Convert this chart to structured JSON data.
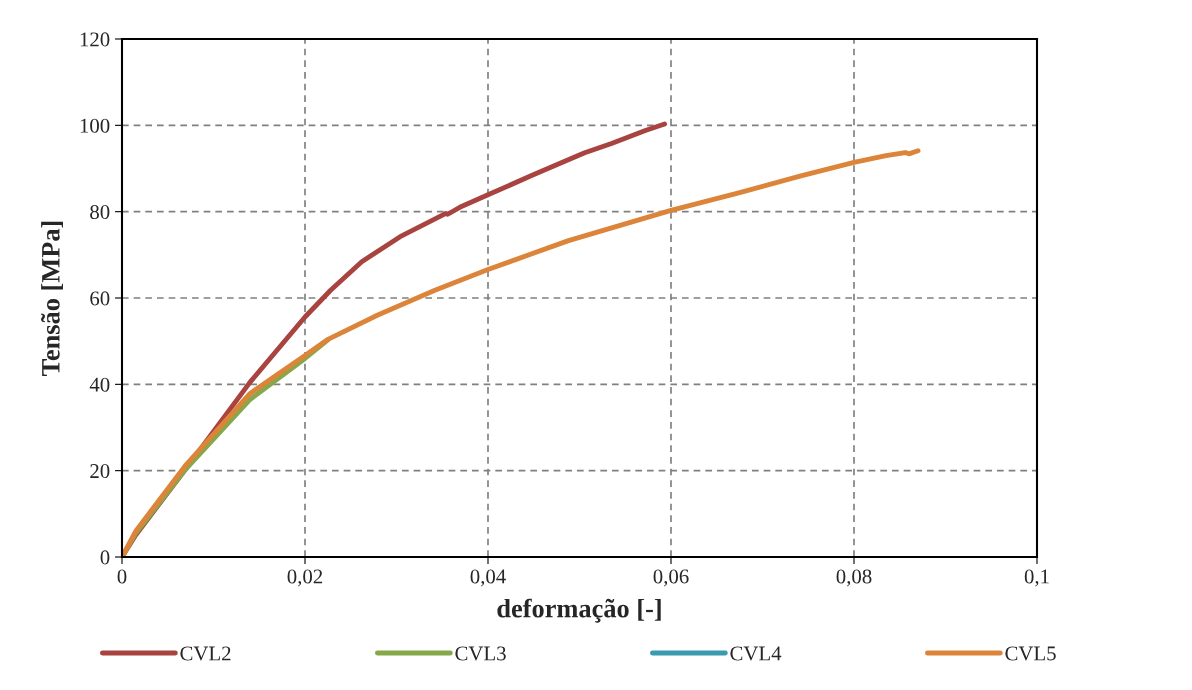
{
  "chart_data": {
    "type": "line",
    "xlabel": "deformação [-]",
    "ylabel": "Tensão [MPa]",
    "xlim": [
      0,
      0.1
    ],
    "xticks": [
      0,
      {
        "value": 0.02,
        "label": "0,02"
      },
      {
        "value": 0.04,
        "label": "0,04"
      },
      {
        "value": 0.06,
        "label": "0,06"
      },
      {
        "value": 0.08,
        "label": "0,08"
      },
      {
        "value": 0.1,
        "label": "0,1"
      }
    ],
    "ylim": [
      0,
      120
    ],
    "yticks": [
      0,
      20,
      40,
      60,
      80,
      100,
      120
    ],
    "grid": true,
    "line_style": "solid",
    "marker": "none",
    "legend": "bottom",
    "series": [
      {
        "name": "CVL2",
        "color": "#a84340",
        "x": [
          0,
          0.0015,
          0.0069,
          0.014,
          0.02,
          0.0228,
          0.0262,
          0.0304,
          0.0354,
          0.0356,
          0.0371,
          0.04,
          0.0447,
          0.0505,
          0.0535,
          0.0572,
          0.0593
        ],
        "values": [
          0,
          5.1,
          20.2,
          40.5,
          55.6,
          61.8,
          68.4,
          74.2,
          79.6,
          79.4,
          81.2,
          83.9,
          88.3,
          93.6,
          95.8,
          98.8,
          100.3
        ]
      },
      {
        "name": "CVL3",
        "color": "#86a84a",
        "x": [
          0,
          0.0015,
          0.0069,
          0.014,
          0.02,
          0.0225
        ],
        "values": [
          0,
          5.5,
          20.2,
          36.5,
          46.0,
          50.3
        ]
      },
      {
        "name": "CVL4",
        "color": "#3a9bb0"
      },
      {
        "name": "CVL5",
        "color": "#dc843a",
        "x": [
          0,
          0.0015,
          0.0069,
          0.014,
          0.02,
          0.0224,
          0.0279,
          0.0342,
          0.04,
          0.0488,
          0.06,
          0.0673,
          0.0742,
          0.08,
          0.0835,
          0.0856,
          0.086,
          0.087
        ],
        "values": [
          0,
          6.0,
          21.1,
          37.9,
          46.7,
          50.3,
          56.0,
          61.8,
          66.6,
          73.3,
          80.3,
          84.3,
          88.3,
          91.4,
          93.0,
          93.7,
          93.4,
          94.1
        ]
      }
    ]
  }
}
